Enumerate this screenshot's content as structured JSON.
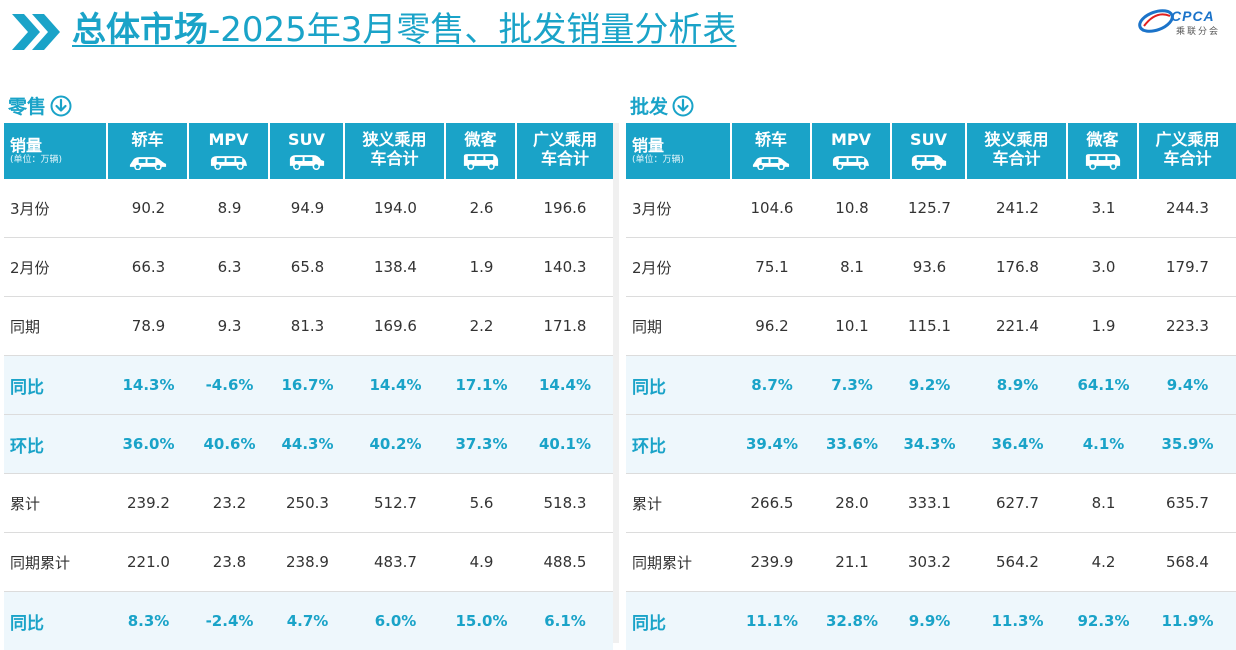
{
  "header": {
    "title_bold": "总体市场",
    "title_rest": "-2025年3月零售、批发销量分析表",
    "logo_text": "CPCA",
    "logo_sub": "乘联分会"
  },
  "retail": {
    "section_label": "零售",
    "columns": [
      "销量",
      "轿车",
      "MPV",
      "SUV",
      "狭义乘用车合计",
      "微客",
      "广义乘用车合计"
    ],
    "unit_note": "(单位：万辆)",
    "rows": [
      [
        "3月份",
        "90.2",
        "8.9",
        "94.9",
        "194.0",
        "2.6",
        "196.6"
      ],
      [
        "2月份",
        "66.3",
        "6.3",
        "65.8",
        "138.4",
        "1.9",
        "140.3"
      ],
      [
        "同期",
        "78.9",
        "9.3",
        "81.3",
        "169.6",
        "2.2",
        "171.8"
      ],
      [
        "同比",
        "14.3%",
        "-4.6%",
        "16.7%",
        "14.4%",
        "17.1%",
        "14.4%"
      ],
      [
        "环比",
        "36.0%",
        "40.6%",
        "44.3%",
        "40.2%",
        "37.3%",
        "40.1%"
      ],
      [
        "累计",
        "239.2",
        "23.2",
        "250.3",
        "512.7",
        "5.6",
        "518.3"
      ],
      [
        "同期累计",
        "221.0",
        "23.8",
        "238.9",
        "483.7",
        "4.9",
        "488.5"
      ],
      [
        "同比",
        "8.3%",
        "-2.4%",
        "4.7%",
        "6.0%",
        "15.0%",
        "6.1%"
      ]
    ]
  },
  "wholesale": {
    "section_label": "批发",
    "columns": [
      "销量",
      "轿车",
      "MPV",
      "SUV",
      "狭义乘用车合计",
      "微客",
      "广义乘用车合计"
    ],
    "unit_note": "(单位：万辆)",
    "rows": [
      [
        "3月份",
        "104.6",
        "10.8",
        "125.7",
        "241.2",
        "3.1",
        "244.3"
      ],
      [
        "2月份",
        "75.1",
        "8.1",
        "93.6",
        "176.8",
        "3.0",
        "179.7"
      ],
      [
        "同期",
        "96.2",
        "10.1",
        "115.1",
        "221.4",
        "1.9",
        "223.3"
      ],
      [
        "同比",
        "8.7%",
        "7.3%",
        "9.2%",
        "8.9%",
        "64.1%",
        "9.4%"
      ],
      [
        "环比",
        "39.4%",
        "33.6%",
        "34.3%",
        "36.4%",
        "4.1%",
        "35.9%"
      ],
      [
        "累计",
        "266.5",
        "28.0",
        "333.1",
        "627.7",
        "8.1",
        "635.7"
      ],
      [
        "同期累计",
        "239.9",
        "21.1",
        "303.2",
        "564.2",
        "4.2",
        "568.4"
      ],
      [
        "同比",
        "11.1%",
        "32.8%",
        "9.9%",
        "11.3%",
        "92.3%",
        "11.9%"
      ]
    ]
  },
  "colors": {
    "accent": "#1aa3c8",
    "highlight_row": "#eef7fc",
    "text": "#333333"
  }
}
